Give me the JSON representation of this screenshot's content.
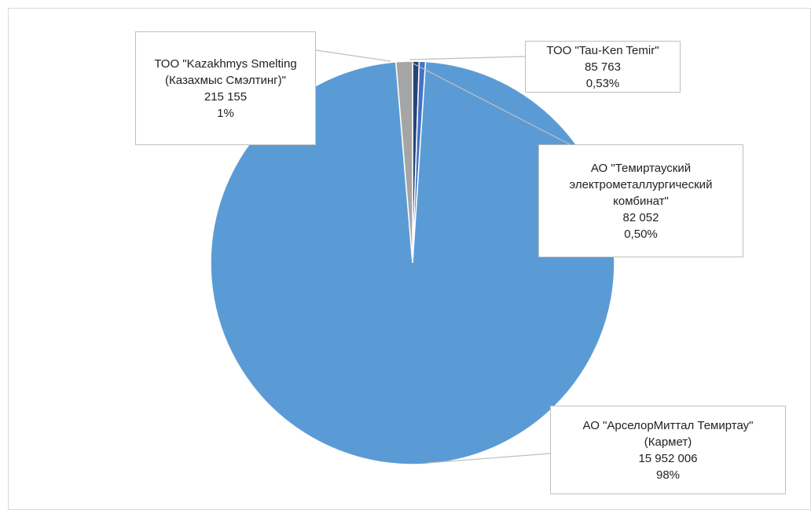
{
  "chart_data": {
    "type": "pie",
    "categories": [
      "ТОО \"Tau-Ken Temir\"",
      "АО \"Темиртауский электрометаллургический комбинат\"",
      "АО \"АрселорМиттал Темиртау\" (Кармет)",
      "ТОО \"Kazakhmys Smelting (Казахмыс Смэлтинг)\""
    ],
    "values": [
      85763,
      82052,
      15952006,
      215155
    ],
    "value_labels": [
      "85 763",
      "82 052",
      "15 952 006",
      "215 155"
    ],
    "percentages": [
      0.53,
      0.5,
      98,
      1
    ],
    "percentage_labels": [
      "0,53%",
      "0,50%",
      "98%",
      "1%"
    ],
    "colors": [
      "#264478",
      "#4472c4",
      "#5b9bd5",
      "#a5a5a5"
    ]
  }
}
